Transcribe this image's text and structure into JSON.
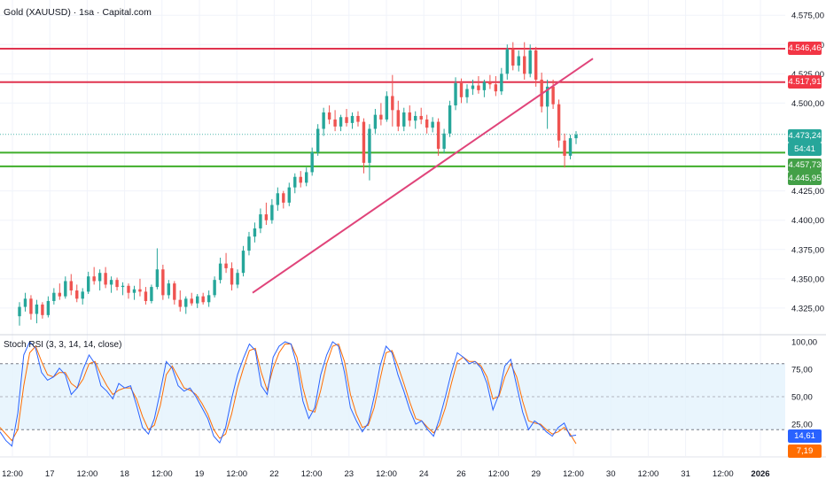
{
  "header": {
    "title": "Gold (XAUUSD) · 1sa · Capital.com"
  },
  "indicator": {
    "label": "Stoch RSI (3, 3, 14, 14, close)"
  },
  "colors": {
    "up": "#26a69a",
    "down": "#ef5350",
    "resistance": "#e0334f",
    "support": "#3fae2a",
    "trend": "#e0447a",
    "k_line": "#2962ff",
    "d_line": "#ff6d00",
    "band_fill": "#e3f2fd"
  },
  "price_tags": [
    {
      "name": "resistance-high-tag",
      "text": "4.546,46",
      "value": 4546.46,
      "color": "#f23645"
    },
    {
      "name": "resistance-low-tag",
      "text": "4.517,91",
      "value": 4517.91,
      "color": "#f23645"
    },
    {
      "name": "current-price-tag",
      "text": "4.473,24",
      "value": 4473.24,
      "color": "#26a69a"
    },
    {
      "name": "countdown-tag",
      "text": "54:41",
      "value": 4466.5,
      "color": "#26a69a"
    },
    {
      "name": "support-high-tag",
      "text": "4.457,73",
      "value": 4457.73,
      "color": "#43a047"
    },
    {
      "name": "support-low-tag",
      "text": "4.445,95",
      "value": 4445.95,
      "color": "#43a047"
    }
  ],
  "stoch_tags": [
    {
      "name": "stoch-k-tag",
      "text": "14,61",
      "value": 14.61,
      "color": "#2962ff"
    },
    {
      "name": "stoch-d-tag",
      "text": "7,19",
      "value": 7.19,
      "color": "#ff6d00"
    }
  ],
  "chart_data": {
    "type": "candlestick",
    "title": "Gold (XAUUSD) · 1sa · Capital.com",
    "price_axis": {
      "range": [
        4303,
        4588
      ],
      "ticks": [
        {
          "value": 4575,
          "label": "4.575,00"
        },
        {
          "value": 4550,
          "label": "4.550,00"
        },
        {
          "value": 4525,
          "label": "4.525,00"
        },
        {
          "value": 4500,
          "label": "4.500,00"
        },
        {
          "value": 4425,
          "label": "4.425,00"
        },
        {
          "value": 4400,
          "label": "4.400,00"
        },
        {
          "value": 4375,
          "label": "4.375,00"
        },
        {
          "value": 4350,
          "label": "4.350,00"
        },
        {
          "value": 4325,
          "label": "4.325,00"
        }
      ]
    },
    "time_axis": {
      "labels": [
        "12:00",
        "17",
        "12:00",
        "18",
        "12:00",
        "19",
        "12:00",
        "22",
        "12:00",
        "23",
        "12:00",
        "24",
        "26",
        "12:00",
        "29",
        "12:00",
        "30",
        "12:00",
        "31",
        "12:00",
        "2026"
      ]
    },
    "horizontal_levels": [
      {
        "value": 4546.46,
        "role": "resistance"
      },
      {
        "value": 4517.91,
        "role": "resistance"
      },
      {
        "value": 4457.73,
        "role": "support"
      },
      {
        "value": 4445.95,
        "role": "support"
      }
    ],
    "trendline": {
      "from_price": 4338,
      "to_price": 4538
    },
    "candles": [
      [
        4318,
        4330,
        4310,
        4326
      ],
      [
        4326,
        4338,
        4322,
        4333
      ],
      [
        4333,
        4336,
        4315,
        4320
      ],
      [
        4320,
        4332,
        4312,
        4328
      ],
      [
        4328,
        4330,
        4316,
        4319
      ],
      [
        4319,
        4335,
        4317,
        4331
      ],
      [
        4331,
        4342,
        4328,
        4338
      ],
      [
        4338,
        4346,
        4332,
        4335
      ],
      [
        4335,
        4352,
        4333,
        4348
      ],
      [
        4348,
        4354,
        4336,
        4340
      ],
      [
        4340,
        4345,
        4330,
        4333
      ],
      [
        4333,
        4342,
        4328,
        4339
      ],
      [
        4339,
        4356,
        4337,
        4352
      ],
      [
        4352,
        4360,
        4345,
        4348
      ],
      [
        4348,
        4358,
        4340,
        4355
      ],
      [
        4355,
        4360,
        4342,
        4345
      ],
      [
        4345,
        4352,
        4338,
        4349
      ],
      [
        4349,
        4351,
        4340,
        4343
      ],
      [
        4343,
        4347,
        4336,
        4344
      ],
      [
        4344,
        4346,
        4333,
        4338
      ],
      [
        4338,
        4344,
        4332,
        4341
      ],
      [
        4341,
        4350,
        4335,
        4339
      ],
      [
        4339,
        4343,
        4328,
        4331
      ],
      [
        4331,
        4345,
        4329,
        4343
      ],
      [
        4343,
        4376,
        4341,
        4358
      ],
      [
        4358,
        4362,
        4332,
        4336
      ],
      [
        4336,
        4349,
        4333,
        4346
      ],
      [
        4346,
        4348,
        4328,
        4332
      ],
      [
        4332,
        4340,
        4322,
        4326
      ],
      [
        4326,
        4335,
        4320,
        4333
      ],
      [
        4333,
        4338,
        4327,
        4329
      ],
      [
        4329,
        4337,
        4325,
        4335
      ],
      [
        4335,
        4338,
        4328,
        4330
      ],
      [
        4330,
        4340,
        4326,
        4336
      ],
      [
        4336,
        4352,
        4334,
        4349
      ],
      [
        4349,
        4368,
        4346,
        4363
      ],
      [
        4363,
        4372,
        4355,
        4359
      ],
      [
        4359,
        4364,
        4340,
        4345
      ],
      [
        4345,
        4358,
        4342,
        4355
      ],
      [
        4355,
        4378,
        4352,
        4374
      ],
      [
        4374,
        4390,
        4370,
        4386
      ],
      [
        4386,
        4398,
        4381,
        4393
      ],
      [
        4393,
        4410,
        4389,
        4405
      ],
      [
        4405,
        4415,
        4396,
        4400
      ],
      [
        4400,
        4418,
        4397,
        4413
      ],
      [
        4413,
        4428,
        4408,
        4423
      ],
      [
        4423,
        4425,
        4410,
        4415
      ],
      [
        4415,
        4432,
        4412,
        4428
      ],
      [
        4428,
        4440,
        4423,
        4437
      ],
      [
        4437,
        4442,
        4428,
        4432
      ],
      [
        4432,
        4445,
        4429,
        4441
      ],
      [
        4441,
        4462,
        4438,
        4458
      ],
      [
        4458,
        4482,
        4455,
        4478
      ],
      [
        4478,
        4496,
        4472,
        4492
      ],
      [
        4492,
        4498,
        4482,
        4486
      ],
      [
        4486,
        4494,
        4476,
        4480
      ],
      [
        4480,
        4490,
        4476,
        4488
      ],
      [
        4488,
        4495,
        4480,
        4483
      ],
      [
        4483,
        4492,
        4478,
        4489
      ],
      [
        4489,
        4493,
        4480,
        4484
      ],
      [
        4484,
        4487,
        4440,
        4449
      ],
      [
        4449,
        4482,
        4434,
        4478
      ],
      [
        4478,
        4495,
        4474,
        4490
      ],
      [
        4490,
        4500,
        4481,
        4486
      ],
      [
        4486,
        4510,
        4484,
        4506
      ],
      [
        4506,
        4524,
        4480,
        4494
      ],
      [
        4494,
        4502,
        4476,
        4480
      ],
      [
        4480,
        4496,
        4476,
        4492
      ],
      [
        4492,
        4498,
        4480,
        4485
      ],
      [
        4485,
        4493,
        4478,
        4489
      ],
      [
        4489,
        4496,
        4482,
        4486
      ],
      [
        4486,
        4490,
        4474,
        4479
      ],
      [
        4479,
        4488,
        4475,
        4484
      ],
      [
        4484,
        4487,
        4455,
        4461
      ],
      [
        4461,
        4478,
        4457,
        4474
      ],
      [
        4474,
        4502,
        4471,
        4498
      ],
      [
        4498,
        4522,
        4494,
        4517
      ],
      [
        4517,
        4521,
        4500,
        4505
      ],
      [
        4505,
        4516,
        4500,
        4512
      ],
      [
        4512,
        4520,
        4507,
        4515
      ],
      [
        4515,
        4523,
        4508,
        4511
      ],
      [
        4511,
        4520,
        4505,
        4518
      ],
      [
        4518,
        4524,
        4512,
        4516
      ],
      [
        4516,
        4523,
        4506,
        4510
      ],
      [
        4510,
        4530,
        4507,
        4525
      ],
      [
        4525,
        4550,
        4520,
        4546
      ],
      [
        4546,
        4552,
        4528,
        4532
      ],
      [
        4532,
        4545,
        4527,
        4540
      ],
      [
        4540,
        4552,
        4520,
        4525
      ],
      [
        4525,
        4550,
        4522,
        4545
      ],
      [
        4545,
        4548,
        4514,
        4520
      ],
      [
        4520,
        4526,
        4492,
        4497
      ],
      [
        4497,
        4520,
        4478,
        4514
      ],
      [
        4514,
        4520,
        4495,
        4499
      ],
      [
        4499,
        4503,
        4462,
        4468
      ],
      [
        4468,
        4474,
        4445,
        4455
      ],
      [
        4455,
        4473,
        4452,
        4470
      ],
      [
        4470,
        4476,
        4465,
        4473
      ]
    ],
    "stoch_rsi": {
      "label": "Stoch RSI (3, 3, 14, 14, close)",
      "range": [
        0,
        100
      ],
      "levels": [
        80,
        20
      ],
      "ticks": [
        {
          "value": 100,
          "label": "100,00"
        },
        {
          "value": 75,
          "label": "75,00"
        },
        {
          "value": 50,
          "label": "50,00"
        },
        {
          "value": 25,
          "label": "25,00"
        }
      ],
      "k": [
        18,
        10,
        5,
        35,
        88,
        100,
        94,
        72,
        65,
        68,
        76,
        70,
        52,
        58,
        75,
        88,
        80,
        60,
        55,
        48,
        62,
        58,
        60,
        42,
        22,
        16,
        30,
        55,
        82,
        76,
        60,
        55,
        58,
        50,
        40,
        30,
        14,
        8,
        22,
        48,
        70,
        85,
        98,
        92,
        60,
        52,
        86,
        96,
        100,
        98,
        78,
        46,
        30,
        40,
        70,
        88,
        100,
        96,
        72,
        40,
        28,
        18,
        26,
        50,
        78,
        96,
        90,
        70,
        55,
        38,
        25,
        28,
        20,
        14,
        30,
        50,
        72,
        90,
        86,
        80,
        82,
        76,
        62,
        38,
        52,
        78,
        84,
        60,
        36,
        20,
        28,
        24,
        18,
        14,
        22,
        26,
        14,
        15
      ],
      "d": [
        22,
        16,
        10,
        20,
        60,
        90,
        96,
        82,
        70,
        68,
        72,
        72,
        62,
        58,
        66,
        80,
        82,
        70,
        60,
        52,
        56,
        58,
        58,
        48,
        32,
        20,
        24,
        42,
        70,
        78,
        68,
        58,
        56,
        52,
        44,
        34,
        20,
        12,
        16,
        34,
        58,
        76,
        92,
        94,
        72,
        56,
        76,
        90,
        98,
        98,
        86,
        58,
        38,
        36,
        56,
        80,
        96,
        98,
        82,
        52,
        34,
        22,
        24,
        40,
        66,
        90,
        92,
        78,
        62,
        45,
        30,
        28,
        22,
        17,
        24,
        40,
        62,
        82,
        86,
        82,
        82,
        78,
        68,
        48,
        50,
        68,
        80,
        68,
        46,
        28,
        26,
        25,
        20,
        16,
        18,
        22,
        16,
        7.19
      ]
    }
  }
}
